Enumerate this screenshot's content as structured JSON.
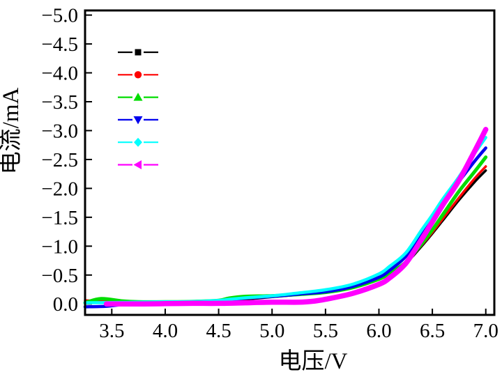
{
  "figure": {
    "background": "#ffffff",
    "frame_color": "#000000"
  },
  "chart_data": {
    "type": "line",
    "title": "",
    "xlabel": "电压/V",
    "ylabel": "电流/mA",
    "xlim": [
      3.25,
      7.08
    ],
    "ylim": [
      -5.08,
      0.19
    ],
    "grid": false,
    "legend_position": "upper-left-inside",
    "legend_has_text": false,
    "x_ticks": [
      3.5,
      4.0,
      4.5,
      5.0,
      5.5,
      6.0,
      6.5,
      7.0
    ],
    "x_tick_labels": [
      "3.5",
      "4.0",
      "4.5",
      "5.0",
      "5.5",
      "6.0",
      "6.5",
      "7.0"
    ],
    "y_ticks": [
      -5.0,
      -4.5,
      -4.0,
      -3.5,
      -3.0,
      -2.5,
      -2.0,
      -1.5,
      -1.0,
      -0.5,
      0.0
    ],
    "y_tick_labels": [
      "−5.0",
      "−4.5",
      "−4.0",
      "−3.5",
      "−3.0",
      "−2.5",
      "−2.0",
      "−1.5",
      "−1.0",
      "−0.5",
      "0.0"
    ],
    "series": [
      {
        "name": "black-square",
        "marker": "square",
        "color": "#000000",
        "line_width": 3.5,
        "points": [
          [
            3.25,
            -0.03
          ],
          [
            3.5,
            -0.03
          ],
          [
            3.75,
            -0.03
          ],
          [
            4.0,
            -0.03
          ],
          [
            4.25,
            -0.035
          ],
          [
            4.5,
            -0.045
          ],
          [
            4.6,
            -0.06
          ],
          [
            4.75,
            -0.08
          ],
          [
            5.0,
            -0.12
          ],
          [
            5.25,
            -0.16
          ],
          [
            5.5,
            -0.21
          ],
          [
            5.75,
            -0.29
          ],
          [
            6.0,
            -0.43
          ],
          [
            6.1,
            -0.52
          ],
          [
            6.25,
            -0.7
          ],
          [
            6.4,
            -1.0
          ],
          [
            6.5,
            -1.22
          ],
          [
            6.6,
            -1.45
          ],
          [
            6.75,
            -1.8
          ],
          [
            6.9,
            -2.12
          ],
          [
            7.0,
            -2.31
          ]
        ]
      },
      {
        "name": "red-circle",
        "marker": "circle",
        "color": "#ff0000",
        "line_width": 3.5,
        "points": [
          [
            3.25,
            -0.06
          ],
          [
            3.5,
            -0.045
          ],
          [
            3.75,
            -0.035
          ],
          [
            4.0,
            -0.035
          ],
          [
            4.25,
            -0.04
          ],
          [
            4.5,
            -0.05
          ],
          [
            4.6,
            -0.065
          ],
          [
            4.75,
            -0.09
          ],
          [
            5.0,
            -0.13
          ],
          [
            5.25,
            -0.175
          ],
          [
            5.5,
            -0.225
          ],
          [
            5.75,
            -0.31
          ],
          [
            6.0,
            -0.45
          ],
          [
            6.1,
            -0.54
          ],
          [
            6.25,
            -0.72
          ],
          [
            6.4,
            -1.02
          ],
          [
            6.5,
            -1.24
          ],
          [
            6.6,
            -1.48
          ],
          [
            6.75,
            -1.84
          ],
          [
            6.9,
            -2.18
          ],
          [
            7.0,
            -2.38
          ]
        ]
      },
      {
        "name": "green-triangle-up",
        "marker": "triangle-up",
        "color": "#00dd00",
        "line_width": 5,
        "points": [
          [
            3.25,
            -0.02
          ],
          [
            3.4,
            -0.09
          ],
          [
            3.6,
            -0.05
          ],
          [
            3.75,
            -0.035
          ],
          [
            4.0,
            -0.035
          ],
          [
            4.25,
            -0.04
          ],
          [
            4.5,
            -0.06
          ],
          [
            4.6,
            -0.1
          ],
          [
            4.75,
            -0.13
          ],
          [
            5.0,
            -0.14
          ],
          [
            5.25,
            -0.165
          ],
          [
            5.5,
            -0.2
          ],
          [
            5.75,
            -0.28
          ],
          [
            6.0,
            -0.43
          ],
          [
            6.1,
            -0.53
          ],
          [
            6.25,
            -0.72
          ],
          [
            6.4,
            -1.04
          ],
          [
            6.5,
            -1.28
          ],
          [
            6.6,
            -1.55
          ],
          [
            6.75,
            -1.95
          ],
          [
            6.9,
            -2.3
          ],
          [
            7.0,
            -2.54
          ]
        ]
      },
      {
        "name": "blue-triangle-down",
        "marker": "triangle-down",
        "color": "#0000ee",
        "line_width": 4.5,
        "points": [
          [
            3.25,
            0.05
          ],
          [
            3.45,
            0.04
          ],
          [
            3.6,
            0.01
          ],
          [
            3.75,
            -0.02
          ],
          [
            4.0,
            -0.03
          ],
          [
            4.25,
            -0.035
          ],
          [
            4.5,
            -0.05
          ],
          [
            4.6,
            -0.07
          ],
          [
            4.75,
            -0.1
          ],
          [
            5.0,
            -0.13
          ],
          [
            5.25,
            -0.17
          ],
          [
            5.5,
            -0.21
          ],
          [
            5.75,
            -0.3
          ],
          [
            6.0,
            -0.46
          ],
          [
            6.1,
            -0.58
          ],
          [
            6.25,
            -0.82
          ],
          [
            6.4,
            -1.2
          ],
          [
            6.5,
            -1.48
          ],
          [
            6.6,
            -1.75
          ],
          [
            6.75,
            -2.12
          ],
          [
            6.9,
            -2.48
          ],
          [
            7.0,
            -2.7
          ]
        ]
      },
      {
        "name": "cyan-diamond",
        "marker": "diamond",
        "color": "#00ffff",
        "line_width": 4.5,
        "points": [
          [
            3.25,
            -0.02
          ],
          [
            3.5,
            -0.025
          ],
          [
            3.75,
            -0.03
          ],
          [
            4.0,
            -0.035
          ],
          [
            4.25,
            -0.04
          ],
          [
            4.5,
            -0.06
          ],
          [
            4.6,
            -0.08
          ],
          [
            4.75,
            -0.105
          ],
          [
            5.0,
            -0.14
          ],
          [
            5.25,
            -0.19
          ],
          [
            5.5,
            -0.245
          ],
          [
            5.75,
            -0.34
          ],
          [
            6.0,
            -0.52
          ],
          [
            6.1,
            -0.65
          ],
          [
            6.25,
            -0.88
          ],
          [
            6.4,
            -1.28
          ],
          [
            6.5,
            -1.54
          ],
          [
            6.6,
            -1.82
          ],
          [
            6.75,
            -2.2
          ],
          [
            6.9,
            -2.62
          ],
          [
            7.0,
            -2.88
          ]
        ]
      },
      {
        "name": "magenta-triangle-left",
        "marker": "triangle-left",
        "color": "#ff00ff",
        "line_width": 7.5,
        "points": [
          [
            3.45,
            0.0
          ],
          [
            3.75,
            0.0
          ],
          [
            4.0,
            -0.005
          ],
          [
            4.25,
            -0.01
          ],
          [
            4.5,
            -0.01
          ],
          [
            4.75,
            -0.02
          ],
          [
            5.0,
            -0.03
          ],
          [
            5.25,
            -0.03
          ],
          [
            5.4,
            -0.05
          ],
          [
            5.5,
            -0.08
          ],
          [
            5.75,
            -0.18
          ],
          [
            6.0,
            -0.34
          ],
          [
            6.1,
            -0.45
          ],
          [
            6.25,
            -0.7
          ],
          [
            6.4,
            -1.12
          ],
          [
            6.5,
            -1.42
          ],
          [
            6.6,
            -1.72
          ],
          [
            6.75,
            -2.14
          ],
          [
            6.9,
            -2.66
          ],
          [
            7.0,
            -3.02
          ]
        ]
      }
    ]
  }
}
